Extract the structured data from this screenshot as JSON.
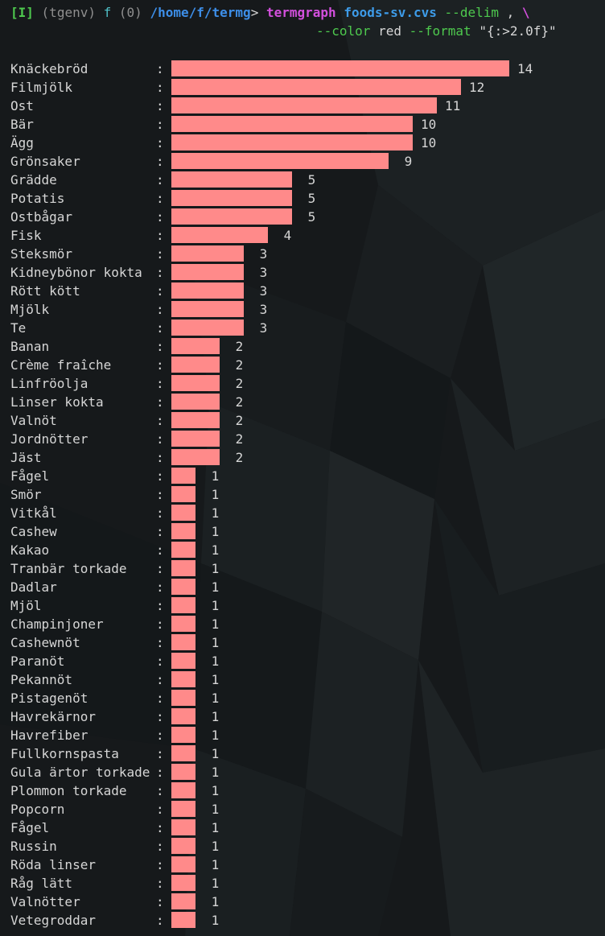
{
  "prompt": {
    "indicator": "[I]",
    "env": "(tgenv)",
    "user": "f",
    "status": "(0)",
    "path": "/home/f/termg",
    "gt": ">",
    "command": "termgraph",
    "file": "foods-sv.cvs",
    "flag_delim": "--delim",
    "delim_value": ",",
    "continuation": "\\",
    "flag_color": "--color",
    "color_value": "red",
    "flag_format": "--format",
    "format_value": "\"{:>2.0f}\""
  },
  "colors": {
    "bar": "#ff8a8a",
    "background": "#16191b",
    "text": "#d6d6d6"
  },
  "chart_data": {
    "type": "bar",
    "orientation": "horizontal",
    "xmax": 14,
    "categories": [
      "Knäckebröd",
      "Filmjölk",
      "Ost",
      "Bär",
      "Ägg",
      "Grönsaker",
      "Grädde",
      "Potatis",
      "Ostbågar",
      "Fisk",
      "Steksmör",
      "Kidneybönor kokta",
      "Rött kött",
      "Mjölk",
      "Te",
      "Banan",
      "Crème fraîche",
      "Linfröolja",
      "Linser kokta",
      "Valnöt",
      "Jordnötter",
      "Jäst",
      "Fågel",
      "Smör",
      "Vitkål",
      "Cashew",
      "Kakao",
      "Tranbär torkade",
      "Dadlar",
      "Mjöl",
      "Champinjoner",
      "Cashewnöt",
      "Paranöt",
      "Pekannöt",
      "Pistagenöt",
      "Havrekärnor",
      "Havrefiber",
      "Fullkornspasta",
      "Gula ärtor torkade",
      "Plommon torkade",
      "Popcorn",
      "Fågel",
      "Russin",
      "Röda linser",
      "Råg lätt",
      "Valnötter",
      "Vetegroddar"
    ],
    "values": [
      14,
      12,
      11,
      10,
      10,
      9,
      5,
      5,
      5,
      4,
      3,
      3,
      3,
      3,
      3,
      2,
      2,
      2,
      2,
      2,
      2,
      2,
      1,
      1,
      1,
      1,
      1,
      1,
      1,
      1,
      1,
      1,
      1,
      1,
      1,
      1,
      1,
      1,
      1,
      1,
      1,
      1,
      1,
      1,
      1,
      1,
      1
    ],
    "value_labels": [
      "14",
      "12",
      "11",
      "10",
      "10",
      " 9",
      " 5",
      " 5",
      " 5",
      " 4",
      " 3",
      " 3",
      " 3",
      " 3",
      " 3",
      " 2",
      " 2",
      " 2",
      " 2",
      " 2",
      " 2",
      " 2",
      " 1",
      " 1",
      " 1",
      " 1",
      " 1",
      " 1",
      " 1",
      " 1",
      " 1",
      " 1",
      " 1",
      " 1",
      " 1",
      " 1",
      " 1",
      " 1",
      " 1",
      " 1",
      " 1",
      " 1",
      " 1",
      " 1",
      " 1",
      " 1",
      " 1"
    ],
    "separator": ":"
  }
}
